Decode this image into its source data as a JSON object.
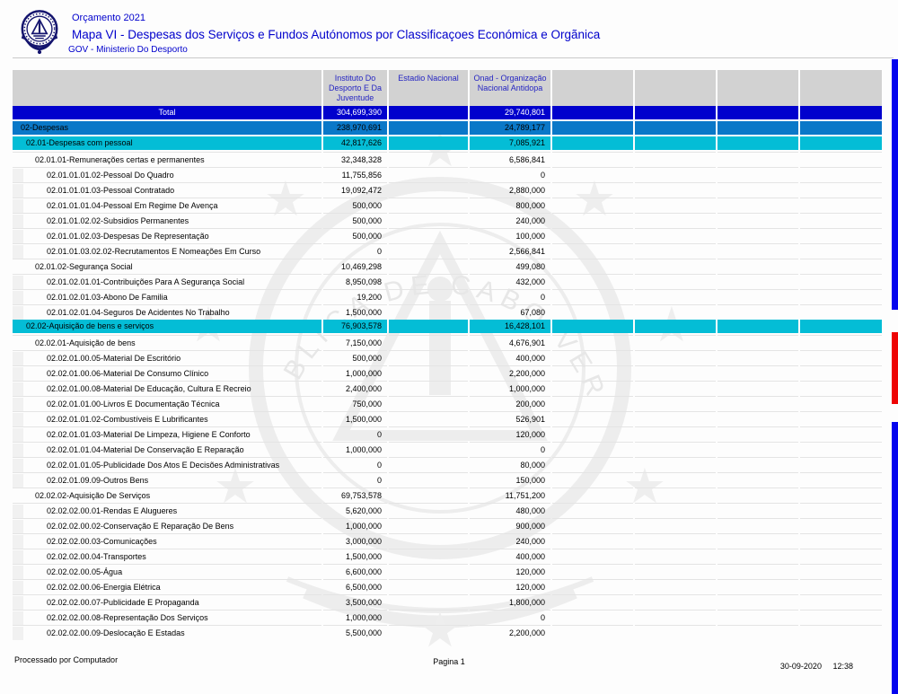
{
  "header": {
    "program": "Orçamento 2021",
    "title": "Mapa VI - Despesas dos Serviços e Fundos Autónomos por Classificaçoes Económica e Orgãnica",
    "org": "GOV - Ministerio Do Desporto",
    "logo": "cape-verde-coat-of-arms"
  },
  "table": {
    "columns": [
      "",
      "Instituto Do Desporto E Da Juventude",
      "Estadio Nacional",
      "Onad - Organização Nacional Antidopa",
      "",
      "",
      "",
      ""
    ],
    "rows": [
      {
        "label": "Total",
        "type": "total",
        "values": [
          "304,699,390",
          "",
          "29,740,801",
          "",
          "",
          "",
          ""
        ]
      },
      {
        "label": "02-Despesas",
        "type": "l1",
        "values": [
          "238,970,691",
          "",
          "24,789,177",
          "",
          "",
          "",
          ""
        ]
      },
      {
        "label": "02.01-Despesas com pessoal",
        "type": "l2",
        "values": [
          "42,817,626",
          "",
          "7,085,921",
          "",
          "",
          "",
          ""
        ]
      },
      {
        "label": "02.01.01-Remunerações certas e permanentes",
        "type": "sub1",
        "values": [
          "32,348,328",
          "",
          "6,586,841",
          "",
          "",
          "",
          ""
        ]
      },
      {
        "label": "02.01.01.01.02-Pessoal Do Quadro",
        "type": "sub2",
        "values": [
          "11,755,856",
          "",
          "0",
          "",
          "",
          "",
          ""
        ]
      },
      {
        "label": "02.01.01.01.03-Pessoal Contratado",
        "type": "sub2",
        "values": [
          "19,092,472",
          "",
          "2,880,000",
          "",
          "",
          "",
          ""
        ]
      },
      {
        "label": "02.01.01.01.04-Pessoal Em Regime De Avença",
        "type": "sub2",
        "values": [
          "500,000",
          "",
          "800,000",
          "",
          "",
          "",
          ""
        ]
      },
      {
        "label": "02.01.01.02.02-Subsidios Permanentes",
        "type": "sub2",
        "values": [
          "500,000",
          "",
          "240,000",
          "",
          "",
          "",
          ""
        ]
      },
      {
        "label": "02.01.01.02.03-Despesas De Representação",
        "type": "sub2",
        "values": [
          "500,000",
          "",
          "100,000",
          "",
          "",
          "",
          ""
        ]
      },
      {
        "label": "02.01.01.03.02.02-Recrutamentos E Nomeações Em Curso",
        "type": "sub2",
        "values": [
          "0",
          "",
          "2,566,841",
          "",
          "",
          "",
          ""
        ]
      },
      {
        "label": "02.01.02-Segurança Social",
        "type": "sub1",
        "values": [
          "10,469,298",
          "",
          "499,080",
          "",
          "",
          "",
          ""
        ]
      },
      {
        "label": "02.01.02.01.01-Contribuições Para A Segurança Social",
        "type": "sub2",
        "values": [
          "8,950,098",
          "",
          "432,000",
          "",
          "",
          "",
          ""
        ]
      },
      {
        "label": "02.01.02.01.03-Abono De Familia",
        "type": "sub2",
        "values": [
          "19,200",
          "",
          "0",
          "",
          "",
          "",
          ""
        ]
      },
      {
        "label": "02.01.02.01.04-Seguros De Acidentes No Trabalho",
        "type": "sub2",
        "values": [
          "1,500,000",
          "",
          "67,080",
          "",
          "",
          "",
          ""
        ]
      },
      {
        "label": "02.02-Aquisição de bens e serviços",
        "type": "l2",
        "values": [
          "76,903,578",
          "",
          "16,428,101",
          "",
          "",
          "",
          ""
        ]
      },
      {
        "label": "02.02.01-Aquisição de bens",
        "type": "sub1",
        "values": [
          "7,150,000",
          "",
          "4,676,901",
          "",
          "",
          "",
          ""
        ]
      },
      {
        "label": "02.02.01.00.05-Material De Escritório",
        "type": "sub2",
        "values": [
          "500,000",
          "",
          "400,000",
          "",
          "",
          "",
          ""
        ]
      },
      {
        "label": "02.02.01.00.06-Material De Consumo Clínico",
        "type": "sub2",
        "values": [
          "1,000,000",
          "",
          "2,200,000",
          "",
          "",
          "",
          ""
        ]
      },
      {
        "label": "02.02.01.00.08-Material De Educação, Cultura E Recreio",
        "type": "sub2",
        "values": [
          "2,400,000",
          "",
          "1,000,000",
          "",
          "",
          "",
          ""
        ]
      },
      {
        "label": "02.02.01.01.00-Livros E Documentação Técnica",
        "type": "sub2",
        "values": [
          "750,000",
          "",
          "200,000",
          "",
          "",
          "",
          ""
        ]
      },
      {
        "label": "02.02.01.01.02-Combustíveis E Lubrificantes",
        "type": "sub2",
        "values": [
          "1,500,000",
          "",
          "526,901",
          "",
          "",
          "",
          ""
        ]
      },
      {
        "label": "02.02.01.01.03-Material De Limpeza, Higiene E Conforto",
        "type": "sub2",
        "values": [
          "0",
          "",
          "120,000",
          "",
          "",
          "",
          ""
        ]
      },
      {
        "label": "02.02.01.01.04-Material De Conservação E Reparação",
        "type": "sub2",
        "values": [
          "1,000,000",
          "",
          "0",
          "",
          "",
          "",
          ""
        ]
      },
      {
        "label": "02.02.01.01.05-Publicidade Dos Atos E Decisões Administrativas",
        "type": "sub2",
        "values": [
          "0",
          "",
          "80,000",
          "",
          "",
          "",
          ""
        ]
      },
      {
        "label": "02.02.01.09.09-Outros Bens",
        "type": "sub2",
        "values": [
          "0",
          "",
          "150,000",
          "",
          "",
          "",
          ""
        ]
      },
      {
        "label": "02.02.02-Aquisição De Serviços",
        "type": "sub1",
        "values": [
          "69,753,578",
          "",
          "11,751,200",
          "",
          "",
          "",
          ""
        ]
      },
      {
        "label": "02.02.02.00.01-Rendas E Alugueres",
        "type": "sub2",
        "values": [
          "5,620,000",
          "",
          "480,000",
          "",
          "",
          "",
          ""
        ]
      },
      {
        "label": "02.02.02.00.02-Conservação E Reparação De Bens",
        "type": "sub2",
        "values": [
          "1,000,000",
          "",
          "900,000",
          "",
          "",
          "",
          ""
        ]
      },
      {
        "label": "02.02.02.00.03-Comunicações",
        "type": "sub2",
        "values": [
          "3,000,000",
          "",
          "240,000",
          "",
          "",
          "",
          ""
        ]
      },
      {
        "label": "02.02.02.00.04-Transportes",
        "type": "sub2",
        "values": [
          "1,500,000",
          "",
          "400,000",
          "",
          "",
          "",
          ""
        ]
      },
      {
        "label": "02.02.02.00.05-Água",
        "type": "sub2",
        "values": [
          "6,600,000",
          "",
          "120,000",
          "",
          "",
          "",
          ""
        ]
      },
      {
        "label": "02.02.02.00.06-Energia Elétrica",
        "type": "sub2",
        "values": [
          "6,500,000",
          "",
          "120,000",
          "",
          "",
          "",
          ""
        ]
      },
      {
        "label": "02.02.02.00.07-Publicidade E Propaganda",
        "type": "sub2",
        "values": [
          "3,500,000",
          "",
          "1,800,000",
          "",
          "",
          "",
          ""
        ]
      },
      {
        "label": "02.02.02.00.08-Representação Dos Serviços",
        "type": "sub2",
        "values": [
          "1,000,000",
          "",
          "0",
          "",
          "",
          "",
          ""
        ]
      },
      {
        "label": "02.02.02.00.09-Deslocação E Estadas",
        "type": "sub2",
        "values": [
          "5,500,000",
          "",
          "2,200,000",
          "",
          "",
          "",
          ""
        ]
      }
    ]
  },
  "footer": {
    "left": "Processado por Computador",
    "center": "Pagina 1",
    "date": "30-09-2020",
    "time": "12:38"
  },
  "colors": {
    "title_blue": "#0000cc",
    "total_row": "#0101cd",
    "level1_row": "#0a78c8",
    "level2_row": "#04bdd6",
    "header_bg": "#d2d2d2",
    "edge_blue": "#0404ee",
    "edge_red": "#ee0404"
  }
}
